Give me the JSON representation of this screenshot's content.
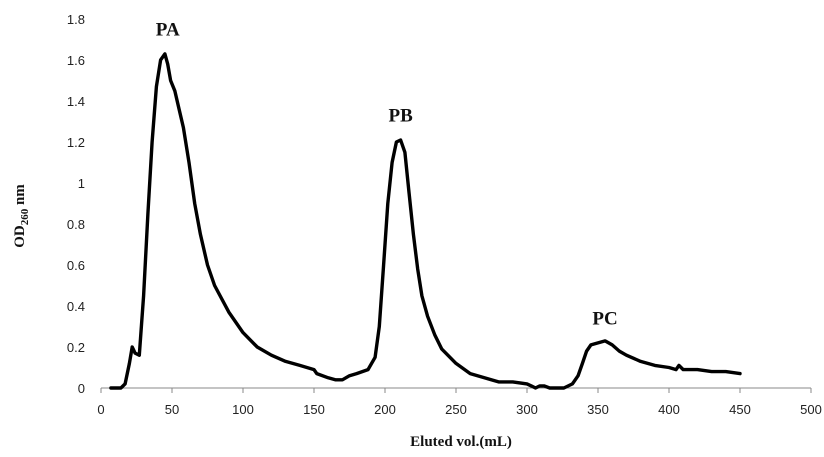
{
  "chart_data": {
    "type": "line",
    "title": "",
    "xlabel": "Eluted vol.(mL)",
    "ylabel_main": "OD",
    "ylabel_sub": "260",
    "ylabel_unit": " nm",
    "xlim": [
      0,
      500
    ],
    "ylim": [
      0,
      1.8
    ],
    "x_ticks": [
      0,
      50,
      100,
      150,
      200,
      250,
      300,
      350,
      400,
      450,
      500
    ],
    "y_ticks": [
      0,
      0.2,
      0.4,
      0.6,
      0.8,
      1,
      1.2,
      1.4,
      1.6,
      1.8
    ],
    "grid": false,
    "legend": "none",
    "line_color": "#000000",
    "series": [
      {
        "x": [
          7,
          14,
          17,
          20,
          22,
          24,
          27,
          30,
          33,
          36,
          39,
          42,
          45,
          47,
          49,
          52,
          55,
          58,
          62,
          66,
          70,
          75,
          80,
          90,
          100,
          110,
          120,
          130,
          140,
          150,
          152,
          160,
          165,
          170,
          175,
          180,
          188,
          193,
          196,
          199,
          202,
          205,
          208,
          211,
          214,
          217,
          220,
          223,
          226,
          230,
          235,
          240,
          250,
          260,
          270,
          280,
          290,
          300,
          303,
          306,
          309,
          312,
          316,
          320,
          326,
          332,
          336,
          339,
          342,
          345,
          350,
          355,
          360,
          365,
          370,
          380,
          390,
          400,
          405,
          407,
          410,
          420,
          430,
          440,
          450
        ],
        "y": [
          0,
          0,
          0.02,
          0.12,
          0.2,
          0.17,
          0.16,
          0.45,
          0.85,
          1.2,
          1.47,
          1.6,
          1.63,
          1.58,
          1.5,
          1.45,
          1.36,
          1.27,
          1.1,
          0.9,
          0.75,
          0.6,
          0.5,
          0.37,
          0.27,
          0.2,
          0.16,
          0.13,
          0.11,
          0.09,
          0.07,
          0.05,
          0.04,
          0.04,
          0.06,
          0.07,
          0.09,
          0.15,
          0.3,
          0.6,
          0.9,
          1.1,
          1.2,
          1.21,
          1.15,
          0.95,
          0.75,
          0.58,
          0.45,
          0.35,
          0.26,
          0.19,
          0.12,
          0.07,
          0.05,
          0.03,
          0.03,
          0.02,
          0.01,
          0.0,
          0.01,
          0.01,
          0,
          0,
          0,
          0.02,
          0.06,
          0.12,
          0.18,
          0.21,
          0.22,
          0.23,
          0.21,
          0.18,
          0.16,
          0.13,
          0.11,
          0.1,
          0.09,
          0.11,
          0.09,
          0.09,
          0.08,
          0.08,
          0.07
        ]
      }
    ],
    "annotations": [
      {
        "text": "PA",
        "x": 47,
        "y": 1.72
      },
      {
        "text": "PB",
        "x": 211,
        "y": 1.3
      },
      {
        "text": "PC",
        "x": 355,
        "y": 0.31
      }
    ]
  }
}
